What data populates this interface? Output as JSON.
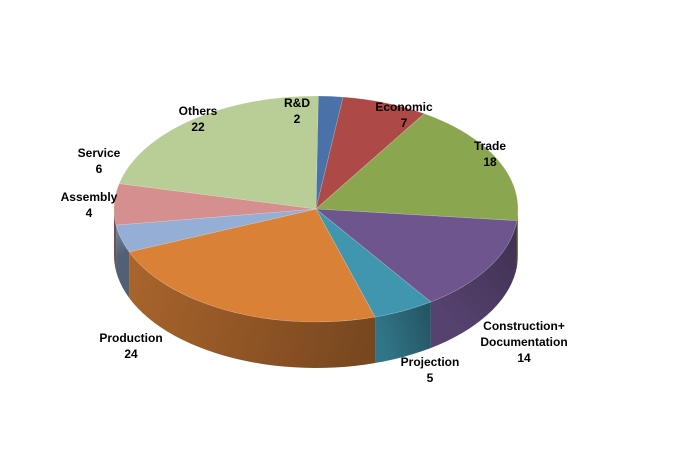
{
  "chart_data": {
    "type": "pie",
    "style": "3d",
    "title": "",
    "legend": "none",
    "slices": [
      {
        "label": "R&D",
        "label_lines": [
          "R&D"
        ],
        "value": 2,
        "color": "#4B72A8"
      },
      {
        "label": "Economic",
        "label_lines": [
          "Economic"
        ],
        "value": 7,
        "color": "#AD4A47"
      },
      {
        "label": "Trade",
        "label_lines": [
          "Trade"
        ],
        "value": 18,
        "color": "#8AA64F"
      },
      {
        "label": "Construction+ Documentation",
        "label_lines": [
          "Construction+",
          "Documentation"
        ],
        "value": 14,
        "color": "#6E558E"
      },
      {
        "label": "Projection",
        "label_lines": [
          "Projection"
        ],
        "value": 5,
        "color": "#3F96AE"
      },
      {
        "label": "Production",
        "label_lines": [
          "Production"
        ],
        "value": 24,
        "color": "#DA8138"
      },
      {
        "label": "Assembly",
        "label_lines": [
          "Assembly"
        ],
        "value": 4,
        "color": "#94AED5"
      },
      {
        "label": "Service",
        "label_lines": [
          "Service"
        ],
        "value": 6,
        "color": "#D48F8E"
      },
      {
        "label": "Others",
        "label_lines": [
          "Others"
        ],
        "value": 22,
        "color": "#B9CD96"
      }
    ]
  }
}
